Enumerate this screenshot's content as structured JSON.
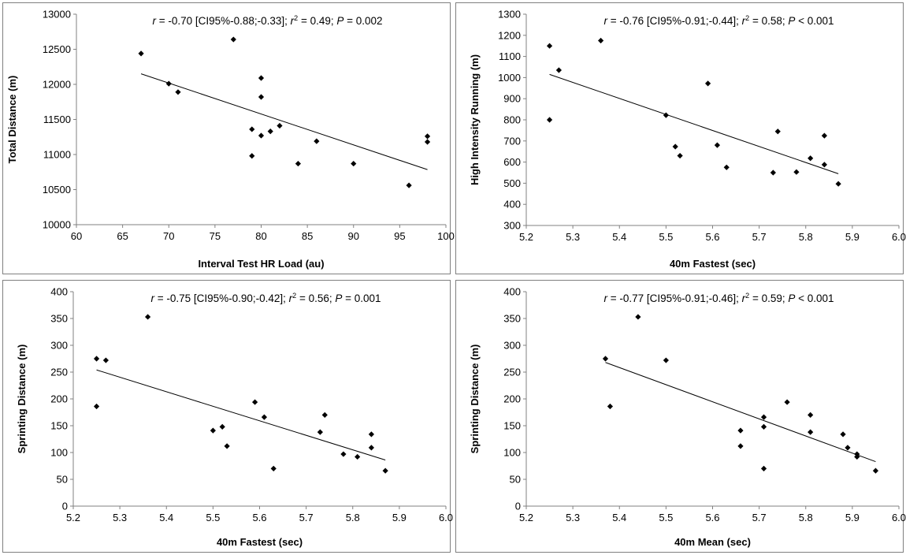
{
  "chart_data": [
    {
      "type": "scatter",
      "xlabel": "Interval Test HR Load (au)",
      "ylabel": "Total Distance (m)",
      "xlim": [
        60,
        100
      ],
      "ylim": [
        10000,
        13000
      ],
      "xticks": [
        60,
        65,
        70,
        75,
        80,
        85,
        90,
        95,
        100
      ],
      "yticks": [
        10000,
        10500,
        11000,
        11500,
        12000,
        12500,
        13000
      ],
      "xtick_labels": [
        "60",
        "65",
        "70",
        "75",
        "80",
        "85",
        "90",
        "95",
        "100"
      ],
      "ytick_labels": [
        "10000",
        "10500",
        "11000",
        "11500",
        "12000",
        "12500",
        "13000"
      ],
      "annotation": {
        "r_label": "r",
        "r_text": " = -0.70 [CI95%-0.88;-0.33]; ",
        "r2_label": "r",
        "r2_sup": "2",
        "r2_text": " = 0.49; ",
        "p_label": "P",
        "p_text": " = 0.002"
      },
      "trendline": {
        "x": [
          67,
          98
        ],
        "y": [
          12150,
          10785
        ]
      },
      "points": [
        {
          "x": 67,
          "y": 12440
        },
        {
          "x": 70,
          "y": 12010
        },
        {
          "x": 71,
          "y": 11890
        },
        {
          "x": 77,
          "y": 12640
        },
        {
          "x": 79,
          "y": 11360
        },
        {
          "x": 79,
          "y": 10980
        },
        {
          "x": 80,
          "y": 12090
        },
        {
          "x": 80,
          "y": 11820
        },
        {
          "x": 80,
          "y": 11270
        },
        {
          "x": 81,
          "y": 11330
        },
        {
          "x": 82,
          "y": 11410
        },
        {
          "x": 84,
          "y": 10870
        },
        {
          "x": 86,
          "y": 11190
        },
        {
          "x": 90,
          "y": 10870
        },
        {
          "x": 96,
          "y": 10560
        },
        {
          "x": 98,
          "y": 11260
        },
        {
          "x": 98,
          "y": 11180
        }
      ]
    },
    {
      "type": "scatter",
      "xlabel": "40m Fastest (sec)",
      "ylabel": "High Intensity Running (m)",
      "xlim": [
        5.2,
        6.0
      ],
      "ylim": [
        300,
        1300
      ],
      "xticks": [
        5.2,
        5.3,
        5.4,
        5.5,
        5.6,
        5.7,
        5.8,
        5.9,
        6.0
      ],
      "yticks": [
        300,
        400,
        500,
        600,
        700,
        800,
        900,
        1000,
        1100,
        1200,
        1300
      ],
      "xtick_labels": [
        "5.2",
        "5.3",
        "5.4",
        "5.5",
        "5.6",
        "5.7",
        "5.8",
        "5.9",
        "6.0"
      ],
      "ytick_labels": [
        "300",
        "400",
        "500",
        "600",
        "700",
        "800",
        "900",
        "1000",
        "1100",
        "1200",
        "1300"
      ],
      "annotation": {
        "r_label": "r",
        "r_text": " = -0.76 [CI95%-0.91;-0.44]; ",
        "r2_label": "r",
        "r2_sup": "2",
        "r2_text": " = 0.58; ",
        "p_label": "P",
        "p_text": " < 0.001"
      },
      "trendline": {
        "x": [
          5.25,
          5.87
        ],
        "y": [
          1015,
          545
        ]
      },
      "points": [
        {
          "x": 5.25,
          "y": 1150
        },
        {
          "x": 5.25,
          "y": 800
        },
        {
          "x": 5.27,
          "y": 1035
        },
        {
          "x": 5.36,
          "y": 1175
        },
        {
          "x": 5.5,
          "y": 822
        },
        {
          "x": 5.52,
          "y": 673
        },
        {
          "x": 5.53,
          "y": 630
        },
        {
          "x": 5.59,
          "y": 972
        },
        {
          "x": 5.61,
          "y": 680
        },
        {
          "x": 5.63,
          "y": 575
        },
        {
          "x": 5.73,
          "y": 550
        },
        {
          "x": 5.74,
          "y": 745
        },
        {
          "x": 5.78,
          "y": 553
        },
        {
          "x": 5.81,
          "y": 618
        },
        {
          "x": 5.84,
          "y": 725
        },
        {
          "x": 5.84,
          "y": 588
        },
        {
          "x": 5.87,
          "y": 497
        }
      ]
    },
    {
      "type": "scatter",
      "xlabel": "40m Fastest (sec)",
      "ylabel": "Sprinting Distance (m)",
      "xlim": [
        5.2,
        6.0
      ],
      "ylim": [
        0,
        400
      ],
      "xticks": [
        5.2,
        5.3,
        5.4,
        5.5,
        5.6,
        5.7,
        5.8,
        5.9,
        6.0
      ],
      "yticks": [
        0,
        50,
        100,
        150,
        200,
        250,
        300,
        350,
        400
      ],
      "xtick_labels": [
        "5.2",
        "5.3",
        "5.4",
        "5.5",
        "5.6",
        "5.7",
        "5.8",
        "5.9",
        "6.0"
      ],
      "ytick_labels": [
        "0",
        "50",
        "100",
        "150",
        "200",
        "250",
        "300",
        "350",
        "400"
      ],
      "annotation": {
        "r_label": "r",
        "r_text": " = -0.75 [CI95%-0.90;-0.42]; ",
        "r2_label": "r",
        "r2_sup": "2",
        "r2_text": " = 0.56; ",
        "p_label": "P",
        "p_text": " = 0.001"
      },
      "trendline": {
        "x": [
          5.25,
          5.87
        ],
        "y": [
          254,
          86
        ]
      },
      "points": [
        {
          "x": 5.25,
          "y": 275
        },
        {
          "x": 5.25,
          "y": 186
        },
        {
          "x": 5.27,
          "y": 272
        },
        {
          "x": 5.36,
          "y": 353
        },
        {
          "x": 5.5,
          "y": 141
        },
        {
          "x": 5.52,
          "y": 148
        },
        {
          "x": 5.53,
          "y": 112
        },
        {
          "x": 5.59,
          "y": 194
        },
        {
          "x": 5.61,
          "y": 166
        },
        {
          "x": 5.63,
          "y": 70
        },
        {
          "x": 5.73,
          "y": 138
        },
        {
          "x": 5.74,
          "y": 170
        },
        {
          "x": 5.78,
          "y": 97
        },
        {
          "x": 5.81,
          "y": 92
        },
        {
          "x": 5.84,
          "y": 134
        },
        {
          "x": 5.84,
          "y": 109
        },
        {
          "x": 5.87,
          "y": 66
        }
      ]
    },
    {
      "type": "scatter",
      "xlabel": "40m Mean (sec)",
      "ylabel": "Sprinting Distance (m)",
      "xlim": [
        5.2,
        6.0
      ],
      "ylim": [
        0,
        400
      ],
      "xticks": [
        5.2,
        5.3,
        5.4,
        5.5,
        5.6,
        5.7,
        5.8,
        5.9,
        6.0
      ],
      "yticks": [
        0,
        50,
        100,
        150,
        200,
        250,
        300,
        350,
        400
      ],
      "xtick_labels": [
        "5.2",
        "5.3",
        "5.4",
        "5.5",
        "5.6",
        "5.7",
        "5.8",
        "5.9",
        "6.0"
      ],
      "ytick_labels": [
        "0",
        "50",
        "100",
        "150",
        "200",
        "250",
        "300",
        "350",
        "400"
      ],
      "annotation": {
        "r_label": "r",
        "r_text": " = -0.77 [CI95%-0.91;-0.46]; ",
        "r2_label": "r",
        "r2_sup": "2",
        "r2_text": " = 0.59; ",
        "p_label": "P",
        "p_text": " < 0.001"
      },
      "trendline": {
        "x": [
          5.37,
          5.95
        ],
        "y": [
          268,
          83
        ]
      },
      "points": [
        {
          "x": 5.37,
          "y": 275
        },
        {
          "x": 5.38,
          "y": 186
        },
        {
          "x": 5.44,
          "y": 353
        },
        {
          "x": 5.5,
          "y": 272
        },
        {
          "x": 5.66,
          "y": 141
        },
        {
          "x": 5.66,
          "y": 112
        },
        {
          "x": 5.71,
          "y": 166
        },
        {
          "x": 5.71,
          "y": 148
        },
        {
          "x": 5.71,
          "y": 70
        },
        {
          "x": 5.76,
          "y": 194
        },
        {
          "x": 5.81,
          "y": 170
        },
        {
          "x": 5.81,
          "y": 138
        },
        {
          "x": 5.88,
          "y": 134
        },
        {
          "x": 5.89,
          "y": 109
        },
        {
          "x": 5.91,
          "y": 97
        },
        {
          "x": 5.91,
          "y": 92
        },
        {
          "x": 5.95,
          "y": 66
        }
      ]
    }
  ]
}
